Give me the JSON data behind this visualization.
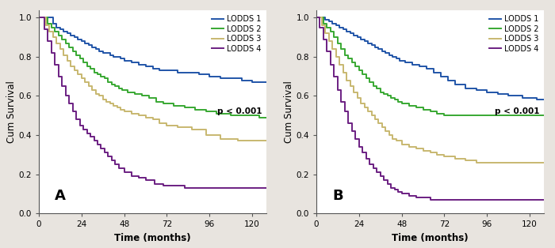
{
  "panel_A": {
    "label": "A",
    "curves": [
      {
        "name": "LODDS 1",
        "color": "#2155a8",
        "x": [
          0,
          8,
          10,
          12,
          14,
          16,
          18,
          20,
          22,
          24,
          26,
          28,
          30,
          32,
          34,
          36,
          38,
          40,
          42,
          44,
          46,
          48,
          52,
          56,
          60,
          64,
          68,
          72,
          78,
          84,
          90,
          96,
          102,
          108,
          114,
          120,
          128
        ],
        "y": [
          1.0,
          0.97,
          0.95,
          0.94,
          0.93,
          0.92,
          0.91,
          0.9,
          0.89,
          0.88,
          0.87,
          0.86,
          0.85,
          0.84,
          0.83,
          0.82,
          0.82,
          0.81,
          0.8,
          0.8,
          0.79,
          0.78,
          0.77,
          0.76,
          0.75,
          0.74,
          0.73,
          0.73,
          0.72,
          0.72,
          0.71,
          0.7,
          0.69,
          0.69,
          0.68,
          0.67,
          0.67
        ]
      },
      {
        "name": "LODDS 2",
        "color": "#38a832",
        "x": [
          0,
          5,
          7,
          9,
          11,
          13,
          15,
          17,
          19,
          21,
          23,
          25,
          27,
          29,
          31,
          33,
          35,
          37,
          39,
          41,
          43,
          45,
          47,
          50,
          54,
          58,
          62,
          66,
          70,
          76,
          82,
          88,
          94,
          100,
          108,
          116,
          124,
          128
        ],
        "y": [
          1.0,
          0.97,
          0.95,
          0.93,
          0.91,
          0.89,
          0.87,
          0.85,
          0.83,
          0.81,
          0.79,
          0.77,
          0.75,
          0.74,
          0.72,
          0.71,
          0.7,
          0.69,
          0.67,
          0.66,
          0.65,
          0.64,
          0.63,
          0.62,
          0.61,
          0.6,
          0.59,
          0.57,
          0.56,
          0.55,
          0.54,
          0.53,
          0.52,
          0.51,
          0.5,
          0.5,
          0.49,
          0.49
        ]
      },
      {
        "name": "LODDS 3",
        "color": "#c8b870",
        "x": [
          0,
          4,
          6,
          8,
          10,
          12,
          14,
          16,
          18,
          20,
          22,
          24,
          26,
          28,
          30,
          32,
          34,
          36,
          38,
          40,
          42,
          44,
          46,
          48,
          52,
          56,
          60,
          64,
          68,
          72,
          78,
          86,
          94,
          102,
          112,
          124,
          128
        ],
        "y": [
          1.0,
          0.96,
          0.93,
          0.9,
          0.87,
          0.84,
          0.81,
          0.78,
          0.75,
          0.73,
          0.71,
          0.69,
          0.67,
          0.65,
          0.63,
          0.61,
          0.6,
          0.58,
          0.57,
          0.56,
          0.55,
          0.54,
          0.53,
          0.52,
          0.51,
          0.5,
          0.49,
          0.48,
          0.46,
          0.45,
          0.44,
          0.43,
          0.4,
          0.38,
          0.37,
          0.37,
          0.37
        ]
      },
      {
        "name": "LODDS 4",
        "color": "#6b1f82",
        "x": [
          0,
          3,
          5,
          7,
          9,
          11,
          13,
          15,
          17,
          19,
          21,
          23,
          25,
          27,
          29,
          31,
          33,
          35,
          37,
          39,
          41,
          43,
          45,
          48,
          52,
          56,
          60,
          65,
          70,
          76,
          82,
          88,
          128
        ],
        "y": [
          1.0,
          0.94,
          0.88,
          0.82,
          0.76,
          0.7,
          0.65,
          0.6,
          0.56,
          0.52,
          0.48,
          0.45,
          0.43,
          0.41,
          0.39,
          0.37,
          0.35,
          0.33,
          0.31,
          0.29,
          0.27,
          0.25,
          0.23,
          0.21,
          0.19,
          0.18,
          0.17,
          0.15,
          0.14,
          0.14,
          0.13,
          0.13,
          0.13
        ]
      }
    ],
    "ptext": "p < 0.001",
    "xlabel": "Time (months)",
    "ylabel": "Cum Survival",
    "xlim": [
      0,
      128
    ],
    "ylim": [
      0.0,
      1.04
    ],
    "xticks": [
      0,
      24,
      48,
      72,
      96,
      120
    ],
    "yticks": [
      0.0,
      0.2,
      0.4,
      0.6,
      0.8,
      1.0
    ]
  },
  "panel_B": {
    "label": "B",
    "curves": [
      {
        "name": "LODDS 1",
        "color": "#2155a8",
        "x": [
          0,
          5,
          7,
          9,
          11,
          13,
          15,
          17,
          19,
          21,
          23,
          25,
          27,
          29,
          31,
          33,
          35,
          37,
          39,
          41,
          43,
          45,
          47,
          50,
          54,
          58,
          62,
          66,
          70,
          74,
          78,
          84,
          90,
          96,
          102,
          108,
          116,
          124,
          128
        ],
        "y": [
          1.0,
          0.99,
          0.98,
          0.97,
          0.96,
          0.95,
          0.94,
          0.93,
          0.92,
          0.91,
          0.9,
          0.89,
          0.88,
          0.87,
          0.86,
          0.85,
          0.84,
          0.83,
          0.82,
          0.81,
          0.8,
          0.79,
          0.78,
          0.77,
          0.76,
          0.75,
          0.74,
          0.72,
          0.7,
          0.68,
          0.66,
          0.64,
          0.63,
          0.62,
          0.61,
          0.6,
          0.59,
          0.58,
          0.58
        ]
      },
      {
        "name": "LODDS 2",
        "color": "#38a832",
        "x": [
          0,
          4,
          6,
          8,
          10,
          12,
          14,
          16,
          18,
          20,
          22,
          24,
          26,
          28,
          30,
          32,
          34,
          36,
          38,
          40,
          42,
          44,
          46,
          48,
          52,
          56,
          60,
          64,
          68,
          72,
          78,
          84,
          90,
          96,
          108,
          120,
          128
        ],
        "y": [
          1.0,
          0.97,
          0.95,
          0.93,
          0.9,
          0.87,
          0.84,
          0.81,
          0.79,
          0.77,
          0.75,
          0.73,
          0.71,
          0.69,
          0.67,
          0.65,
          0.64,
          0.62,
          0.61,
          0.6,
          0.59,
          0.58,
          0.57,
          0.56,
          0.55,
          0.54,
          0.53,
          0.52,
          0.51,
          0.5,
          0.5,
          0.5,
          0.5,
          0.5,
          0.5,
          0.5,
          0.5
        ]
      },
      {
        "name": "LODDS 3",
        "color": "#c8b870",
        "x": [
          0,
          3,
          5,
          7,
          9,
          11,
          13,
          15,
          17,
          19,
          21,
          23,
          25,
          27,
          29,
          31,
          33,
          35,
          37,
          39,
          41,
          43,
          45,
          48,
          52,
          56,
          60,
          64,
          68,
          72,
          78,
          84,
          90,
          96,
          108,
          120,
          128
        ],
        "y": [
          1.0,
          0.96,
          0.92,
          0.88,
          0.84,
          0.8,
          0.76,
          0.72,
          0.68,
          0.65,
          0.62,
          0.59,
          0.56,
          0.54,
          0.52,
          0.5,
          0.48,
          0.46,
          0.44,
          0.42,
          0.4,
          0.38,
          0.37,
          0.35,
          0.34,
          0.33,
          0.32,
          0.31,
          0.3,
          0.29,
          0.28,
          0.27,
          0.26,
          0.26,
          0.26,
          0.26,
          0.26
        ]
      },
      {
        "name": "LODDS 4",
        "color": "#6b1f82",
        "x": [
          0,
          2,
          4,
          6,
          8,
          10,
          12,
          14,
          16,
          18,
          20,
          22,
          24,
          26,
          28,
          30,
          32,
          34,
          36,
          38,
          40,
          42,
          44,
          46,
          48,
          52,
          56,
          60,
          64,
          68,
          72,
          78,
          84,
          90,
          128
        ],
        "y": [
          1.0,
          0.95,
          0.89,
          0.83,
          0.76,
          0.7,
          0.63,
          0.57,
          0.52,
          0.46,
          0.42,
          0.38,
          0.34,
          0.31,
          0.28,
          0.25,
          0.23,
          0.21,
          0.19,
          0.17,
          0.15,
          0.13,
          0.12,
          0.11,
          0.1,
          0.09,
          0.08,
          0.08,
          0.07,
          0.07,
          0.07,
          0.07,
          0.07,
          0.07,
          0.07
        ]
      }
    ],
    "ptext": "p < 0.001",
    "xlabel": "Time (months)",
    "ylabel": "Cum Survival",
    "xlim": [
      0,
      128
    ],
    "ylim": [
      0.0,
      1.04
    ],
    "xticks": [
      0,
      24,
      48,
      72,
      96,
      120
    ],
    "yticks": [
      0.0,
      0.2,
      0.4,
      0.6,
      0.8,
      1.0
    ]
  },
  "bg_color": "#e8e4df",
  "plot_bg_color": "#ffffff",
  "legend_labels": [
    "LODDS 1",
    "LODDS 2",
    "LODDS 3",
    "LODDS 4"
  ],
  "legend_colors": [
    "#2155a8",
    "#38a832",
    "#c8b870",
    "#6b1f82"
  ],
  "linewidth": 1.4
}
